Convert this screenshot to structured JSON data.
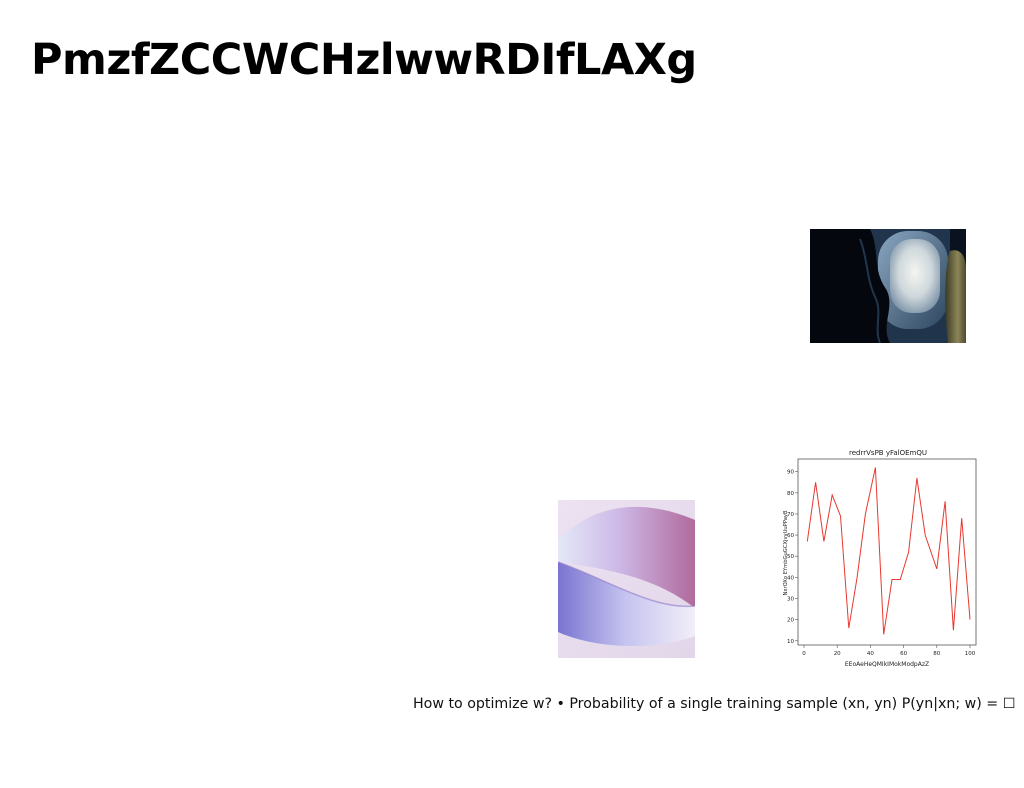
{
  "page": {
    "title": "PmzfZCCWCHzlwwRDIfLAXg",
    "caption": "How to optimize w? • Probability of a single training sample (xn, yn) P(yn|xn; w) = ☐"
  },
  "images": [
    {
      "name": "airplane-window-photo",
      "description_icon": "photo"
    },
    {
      "name": "abstract-wave-photo",
      "description_icon": "photo"
    }
  ],
  "chart_data": {
    "type": "line",
    "title": "redrrVsPB yFalOEmQU",
    "xlabel": "EEoAeHeQMIkIMokModpAzZ",
    "ylabel": "NxrOXo EYmbGuGCXjvvUuPPayB",
    "xlim": [
      0,
      100
    ],
    "ylim": [
      8,
      96
    ],
    "xticks": [
      0,
      20,
      40,
      60,
      80,
      100
    ],
    "yticks": [
      10,
      20,
      30,
      40,
      50,
      60,
      70,
      80,
      90
    ],
    "grid": false,
    "series": [
      {
        "color": "#e8382f",
        "x": [
          2,
          7,
          12,
          17,
          22,
          27,
          32,
          37,
          43,
          48,
          53,
          58,
          63,
          68,
          73,
          80,
          85,
          90,
          95,
          100
        ],
        "y": [
          57,
          85,
          57,
          79,
          69,
          16,
          40,
          70,
          92,
          13,
          39,
          39,
          52,
          87,
          60,
          44,
          76,
          15,
          68,
          20
        ]
      }
    ]
  }
}
